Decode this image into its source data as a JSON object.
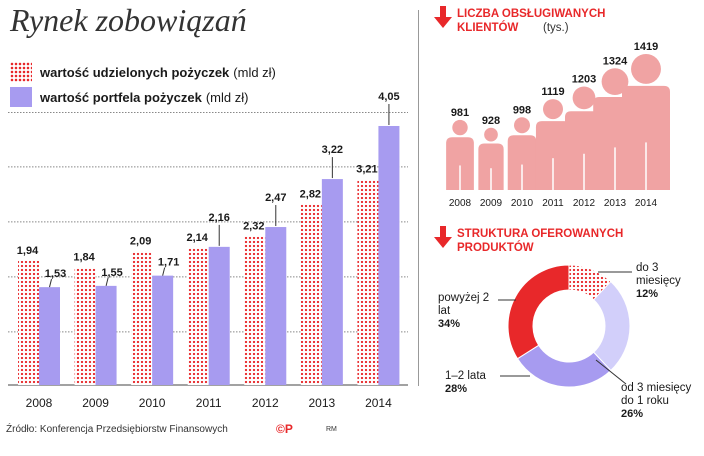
{
  "title": "Rynek zobowiązań",
  "legend": [
    {
      "bold": "wartość udzielonych pożyczek",
      "unit": "(mld zł)",
      "color": "#e8282a"
    },
    {
      "bold": "wartość portfela pożyczek",
      "unit": "(mld zł)",
      "color": "#a79bf0"
    }
  ],
  "source": "Źródło: Konferencja Przedsiębiorstw Finansowych",
  "logo": "©P",
  "rm": "RM",
  "clients": {
    "title_bold": "LICZBA OBSŁUGIWANYCH KLIENTÓW",
    "title_unit": "(tys.)",
    "years": [
      "2008",
      "2009",
      "2010",
      "2011",
      "2012",
      "2013",
      "2014"
    ],
    "values": [
      "981",
      "928",
      "998",
      "1119",
      "1203",
      "1324",
      "1419"
    ],
    "numeric": [
      981,
      928,
      998,
      1119,
      1203,
      1324,
      1419
    ]
  },
  "products": {
    "title_bold": "STRUKTURA OFEROWANYCH PRODUKTÓW",
    "slices": [
      {
        "label": "do 3 miesięcy",
        "pct_label": "12%",
        "value": 12,
        "fill": "dots"
      },
      {
        "label": "od 3 miesięcy do 1 roku",
        "pct_label": "26%",
        "value": 26,
        "fill": "#d2cffa"
      },
      {
        "label": "1–2 lata",
        "pct_label": "28%",
        "value": 28,
        "fill": "#a79bf0"
      },
      {
        "label": "powyżej 2 lat",
        "pct_label": "34%",
        "value": 34,
        "fill": "#e8282a"
      }
    ]
  },
  "chart_data": [
    {
      "type": "bar",
      "title": "Rynek zobowiązań",
      "categories": [
        "2008",
        "2009",
        "2010",
        "2011",
        "2012",
        "2013",
        "2014"
      ],
      "series": [
        {
          "name": "wartość udzielonych pożyczek (mld zł)",
          "values": [
            1.94,
            1.84,
            2.09,
            2.14,
            2.32,
            2.82,
            3.21
          ],
          "labels": [
            "1,94",
            "1,84",
            "2,09",
            "2,14",
            "2,32",
            "2,82",
            "3,21"
          ]
        },
        {
          "name": "wartość portfela pożyczek (mld zł)",
          "values": [
            1.53,
            1.55,
            1.71,
            2.16,
            2.47,
            3.22,
            4.05
          ],
          "labels": [
            "1,53",
            "1,55",
            "1,71",
            "2,16",
            "2,47",
            "3,22",
            "4,05"
          ]
        }
      ],
      "ylim": [
        0,
        4.3
      ],
      "grid": true
    },
    {
      "type": "bar",
      "title": "LICZBA OBSŁUGIWANYCH KLIENTÓW (tys.)",
      "categories": [
        "2008",
        "2009",
        "2010",
        "2011",
        "2012",
        "2013",
        "2014"
      ],
      "values": [
        981,
        928,
        998,
        1119,
        1203,
        1324,
        1419
      ]
    },
    {
      "type": "pie",
      "title": "STRUKTURA OFEROWANYCH PRODUKTÓW",
      "categories": [
        "do 3 miesięcy",
        "od 3 miesięcy do 1 roku",
        "1–2 lata",
        "powyżej 2 lat"
      ],
      "values": [
        12,
        26,
        28,
        34
      ]
    }
  ]
}
